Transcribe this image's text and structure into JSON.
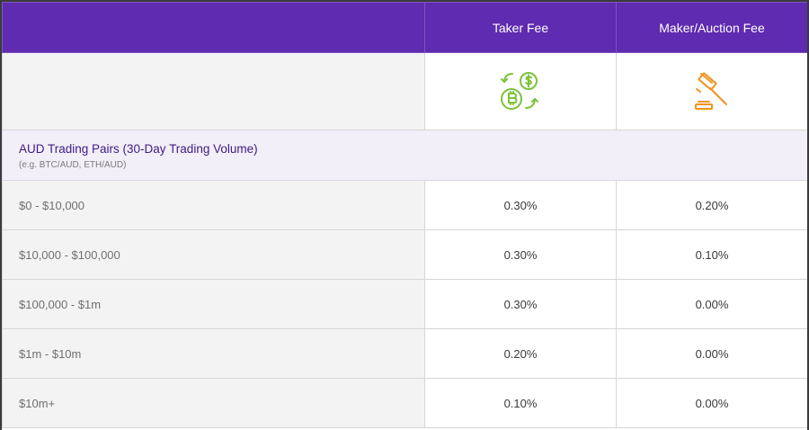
{
  "header": {
    "taker_label": "Taker Fee",
    "maker_label": "Maker/Auction Fee"
  },
  "icons": {
    "taker": "crypto-exchange-icon",
    "maker": "auction-gavel-icon",
    "taker_color": "#7cc23a",
    "maker_color": "#f0931e"
  },
  "group": {
    "title": "AUD Trading Pairs (30-Day Trading Volume)",
    "subtitle": "(e.g. BTC/AUD, ETH/AUD)"
  },
  "rows": [
    {
      "tier": "$0 - $10,000",
      "taker": "0.30%",
      "maker": "0.20%"
    },
    {
      "tier": "$10,000 - $100,000",
      "taker": "0.30%",
      "maker": "0.10%"
    },
    {
      "tier": "$100,000 - $1m",
      "taker": "0.30%",
      "maker": "0.00%"
    },
    {
      "tier": "$1m - $10m",
      "taker": "0.20%",
      "maker": "0.00%"
    },
    {
      "tier": "$10m+",
      "taker": "0.10%",
      "maker": "0.00%"
    }
  ],
  "colors": {
    "header_bg": "#5f2bb0",
    "group_bg": "#f2eff8",
    "group_text": "#3e1a86"
  }
}
